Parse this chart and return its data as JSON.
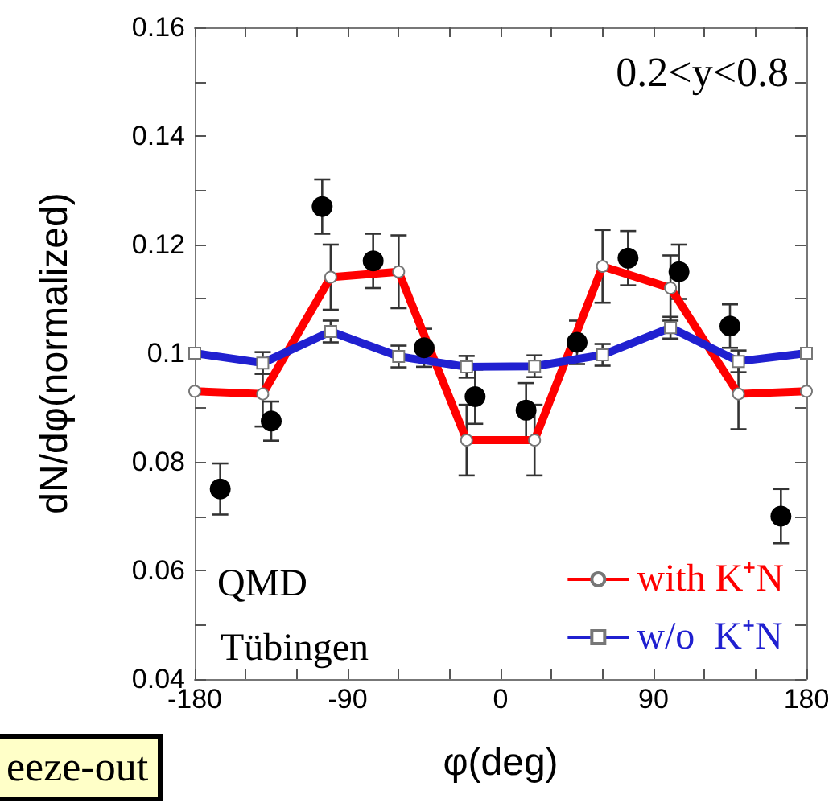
{
  "chart_data": {
    "type": "line",
    "xlabel": "φ(deg)",
    "ylabel": "dN/dφ(normalized)",
    "xlim": [
      -180,
      180
    ],
    "xticks": [
      -180,
      {
        "value": -150,
        "label": null
      },
      {
        "value": -120,
        "label": null
      },
      -90,
      {
        "value": -60,
        "label": null
      },
      {
        "value": -30,
        "label": null
      },
      0,
      {
        "value": 30,
        "label": null
      },
      {
        "value": 60,
        "label": null
      },
      90,
      {
        "value": 120,
        "label": null
      },
      {
        "value": 150,
        "label": null
      },
      180
    ],
    "ylim": [
      0.04,
      0.16
    ],
    "yticks": [
      {
        "value": 0.04,
        "label": "0.04"
      },
      {
        "value": 0.05,
        "label": null
      },
      {
        "value": 0.06,
        "label": "0.06"
      },
      {
        "value": 0.07,
        "label": null
      },
      {
        "value": 0.08,
        "label": "0.08"
      },
      {
        "value": 0.09,
        "label": null
      },
      {
        "value": 0.1,
        "label": "0.1"
      },
      {
        "value": 0.11,
        "label": null
      },
      {
        "value": 0.12,
        "label": "0.12"
      },
      {
        "value": 0.13,
        "label": null
      },
      {
        "value": 0.14,
        "label": "0.14"
      },
      {
        "value": 0.15,
        "label": null
      },
      {
        "value": 0.16,
        "label": "0.16"
      }
    ],
    "grid": false,
    "legend": "bottom right",
    "annotations": [
      "0.2<y<0.8",
      "QMD",
      "Tübingen",
      "eeze-out"
    ],
    "series": [
      {
        "name": "with K⁺N",
        "color": "#ff0000",
        "marker": "circle",
        "x": [
          -180,
          -140,
          -100,
          -60,
          -20,
          20,
          60,
          100,
          140,
          180
        ],
        "values": [
          0.093,
          0.0925,
          0.114,
          0.115,
          0.084,
          0.084,
          0.116,
          0.112,
          0.0925,
          0.093
        ],
        "errors": [
          null,
          0.006,
          0.006,
          0.0067,
          0.0065,
          0.0065,
          0.0067,
          0.006,
          0.0065,
          null
        ]
      },
      {
        "name": "w/o  K⁺N",
        "color": "#2020d0",
        "marker": "square",
        "x": [
          -180,
          -140,
          -100,
          -60,
          -20,
          20,
          60,
          100,
          140,
          180
        ],
        "values": [
          0.1,
          0.0982,
          0.104,
          0.0994,
          0.0975,
          0.0976,
          0.0997,
          0.1047,
          0.0985,
          0.1
        ],
        "errors": [
          null,
          0.002,
          0.002,
          0.002,
          0.002,
          0.002,
          0.002,
          0.002,
          0.002,
          null
        ]
      },
      {
        "type": "scatter",
        "color": "#000000",
        "marker": "circle",
        "x": [
          -165,
          -135,
          -105,
          -75,
          -45,
          -15,
          15,
          45,
          75,
          105,
          135,
          165
        ],
        "values": [
          0.075,
          0.0875,
          0.127,
          0.117,
          0.101,
          0.092,
          0.0895,
          0.102,
          0.1175,
          0.115,
          0.105,
          0.07
        ],
        "errors": [
          0.0047,
          0.0036,
          0.005,
          0.005,
          0.0035,
          0.005,
          0.005,
          0.004,
          0.005,
          0.005,
          0.004,
          0.005
        ]
      }
    ]
  }
}
